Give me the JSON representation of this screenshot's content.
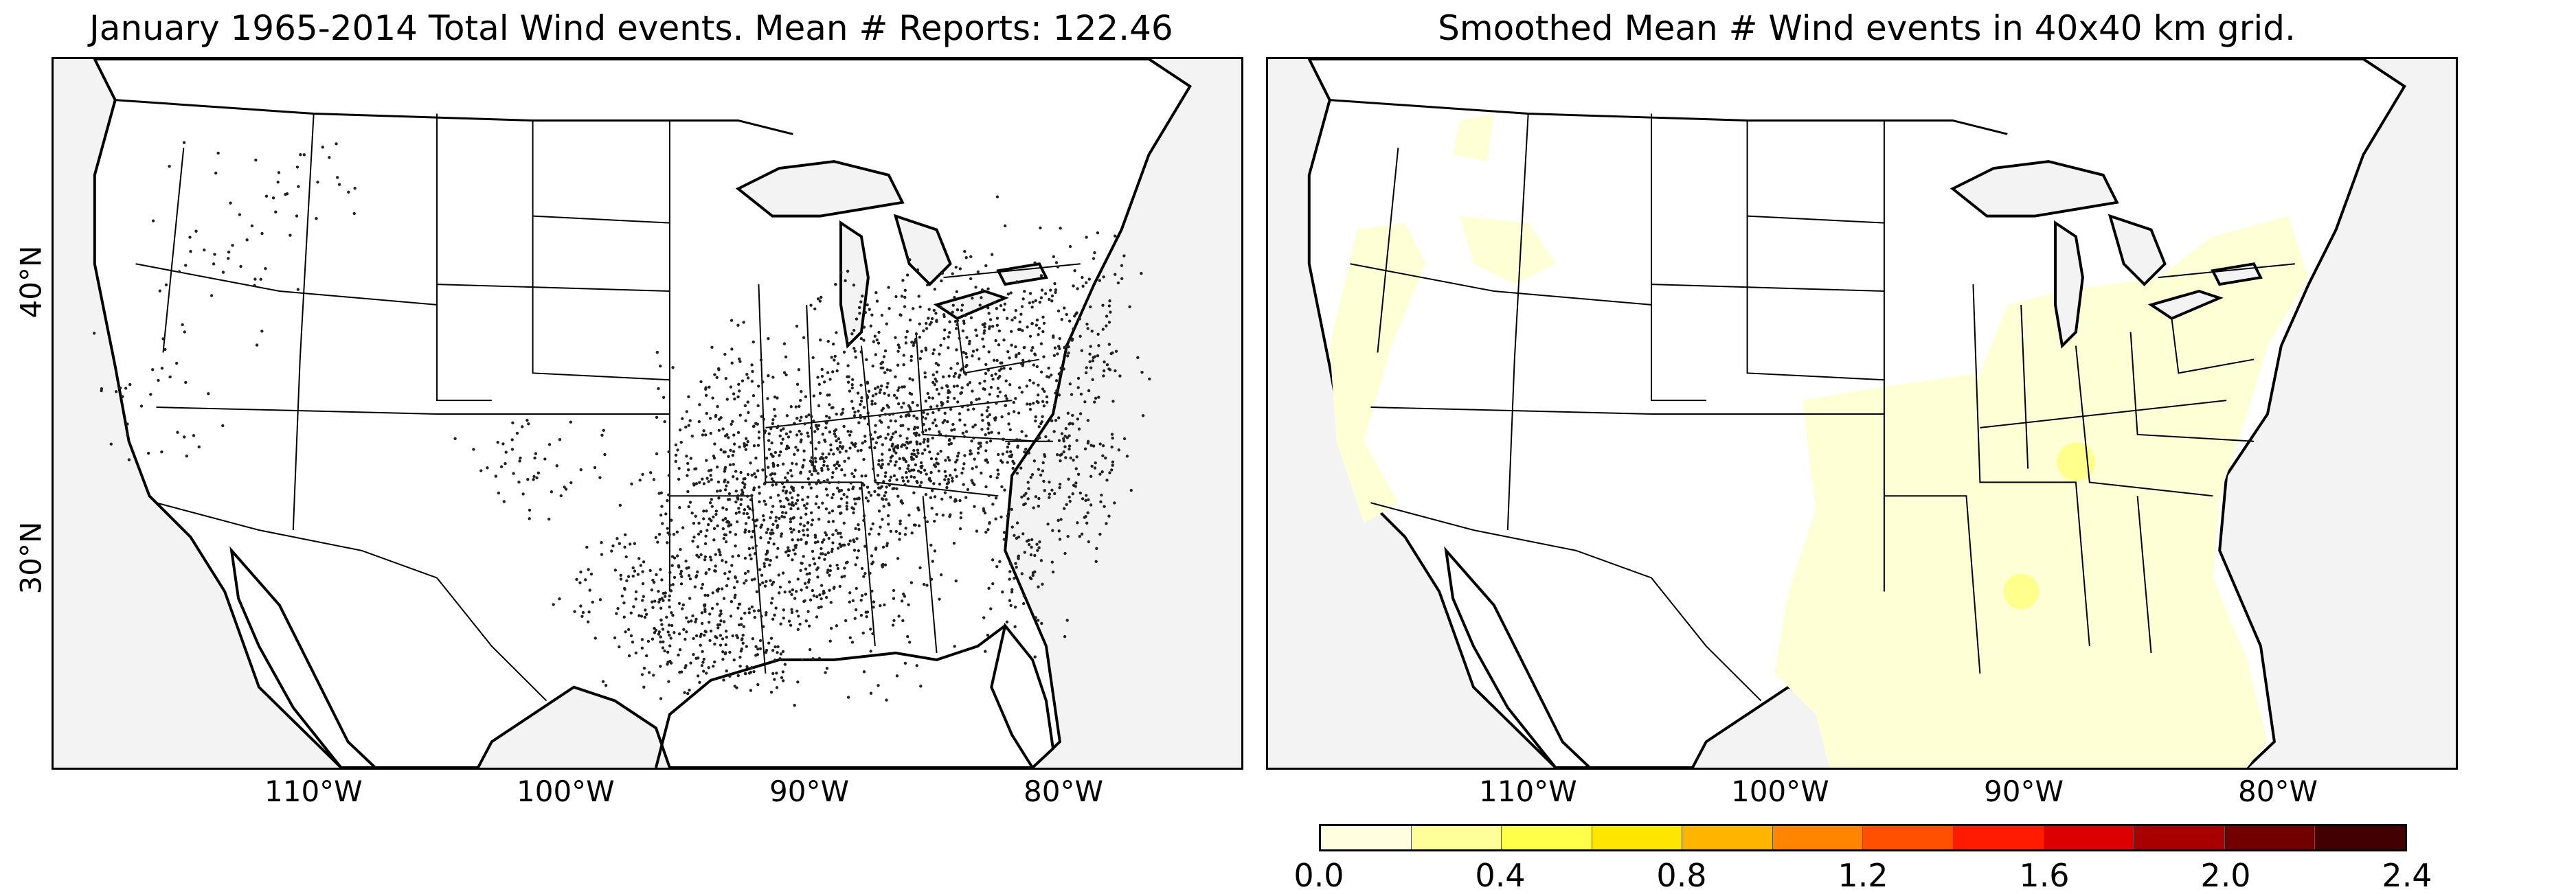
{
  "panels": [
    {
      "title": "January 1965-2014 Total Wind events. Mean # Reports: 122.46",
      "lon_labels": [
        "110°W",
        "100°W",
        "90°W",
        "80°W"
      ],
      "lat_labels": [
        "40°N",
        "30°N"
      ]
    },
    {
      "title": "Smoothed Mean # Wind events in 40x40 km grid.",
      "lon_labels": [
        "110°W",
        "100°W",
        "90°W",
        "80°W"
      ]
    }
  ],
  "colorbar": {
    "tick_labels": [
      "0.0",
      "0.4",
      "0.8",
      "1.2",
      "1.6",
      "2.0",
      "2.4"
    ],
    "colors": [
      "#ffffe0",
      "#ffff9a",
      "#ffff4a",
      "#ffe600",
      "#ffb400",
      "#ff8400",
      "#ff5000",
      "#ff1a00",
      "#dc0000",
      "#a80000",
      "#720000",
      "#420000"
    ]
  },
  "colors": {
    "ocean": "#f3f3f3",
    "land": "#ffffff",
    "report_dots": "#222222",
    "smoothed_low": "#ffffd6",
    "smoothed_hot": "#ffff8c"
  }
}
